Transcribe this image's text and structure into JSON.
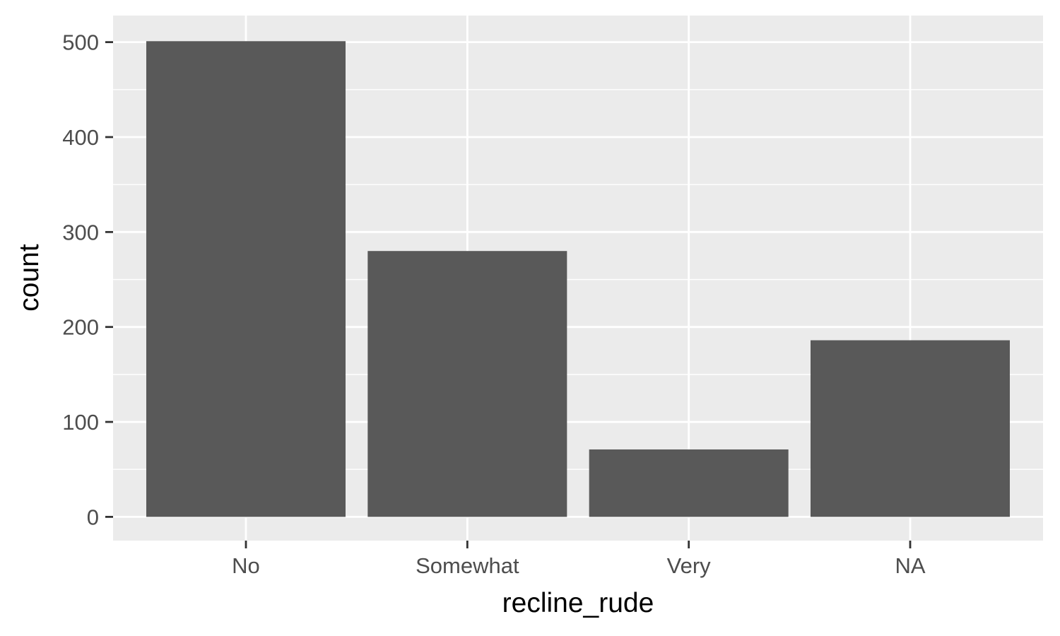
{
  "chart_data": {
    "type": "bar",
    "categories": [
      "No",
      "Somewhat",
      "Very",
      "NA"
    ],
    "values": [
      501,
      280,
      71,
      186
    ],
    "title": "",
    "xlabel": "recline_rude",
    "ylabel": "count",
    "ylim": [
      -25,
      528
    ],
    "yticks": [
      0,
      100,
      200,
      300,
      400,
      500
    ],
    "ytick_labels": [
      "0",
      "100",
      "200",
      "300",
      "400",
      "500"
    ],
    "grid": true,
    "legend": "none",
    "colors": {
      "panel_background": "#ebebeb",
      "grid_line": "#ffffff",
      "bar_fill": "#595959",
      "tick_mark": "#333333",
      "tick_label": "#4d4d4d",
      "axis_title": "#000000"
    }
  }
}
